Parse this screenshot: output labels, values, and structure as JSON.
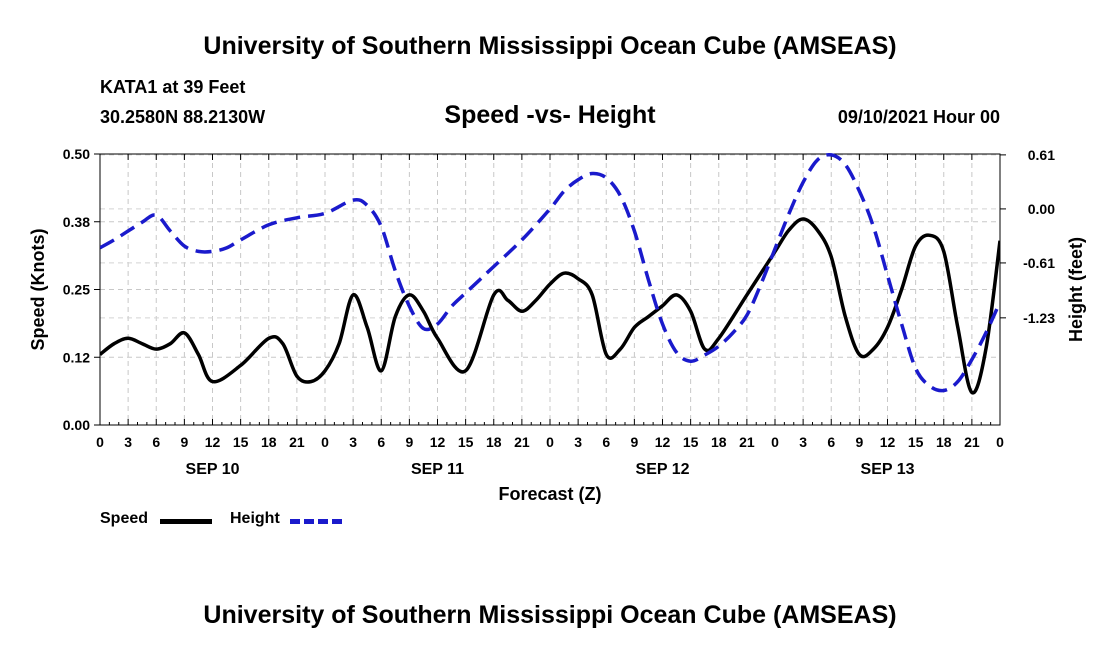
{
  "header": {
    "title": "University of Southern Mississippi Ocean Cube (AMSEAS)",
    "station": "KATA1 at 39 Feet",
    "coordinates": "30.2580N  88.2130W",
    "chart_title": "Speed -vs- Height",
    "datetime": "09/10/2021 Hour 00"
  },
  "footer": {
    "title": "University of Southern Mississippi Ocean Cube (AMSEAS)"
  },
  "legend": {
    "items": [
      {
        "label": "Speed",
        "color": "#000000",
        "style": "solid"
      },
      {
        "label": "Height",
        "color": "#1a1acc",
        "style": "dashed"
      }
    ]
  },
  "chart_data": {
    "type": "line",
    "title": "Speed -vs- Height",
    "xlabel": "Forecast (Z)",
    "ylabel_left": "Speed (Knots)",
    "ylabel_right": "Height (feet)",
    "x_range_hours": [
      0,
      96
    ],
    "x_tick_labels": [
      "0",
      "3",
      "6",
      "9",
      "12",
      "15",
      "18",
      "21",
      "0",
      "3",
      "6",
      "9",
      "12",
      "15",
      "18",
      "21",
      "0",
      "3",
      "6",
      "9",
      "12",
      "15",
      "18",
      "21",
      "0",
      "3",
      "6",
      "9",
      "12",
      "15",
      "18",
      "21",
      "0"
    ],
    "day_labels": [
      {
        "label": "SEP 10",
        "hour": 12
      },
      {
        "label": "SEP 11",
        "hour": 36
      },
      {
        "label": "SEP 12",
        "hour": 60
      },
      {
        "label": "SEP 13",
        "hour": 84
      }
    ],
    "left_axis": {
      "ylim": [
        0,
        0.5
      ],
      "ticks": [
        "0.00",
        "0.12",
        "0.25",
        "0.38",
        "0.50"
      ],
      "tick_values": [
        0,
        0.125,
        0.25,
        0.375,
        0.5
      ]
    },
    "right_axis": {
      "ylim": [
        -2.44,
        0.62
      ],
      "ticks": [
        "0.61",
        "0.00",
        "-0.61",
        "-1.23"
      ],
      "tick_values": [
        0.61,
        0,
        -0.61,
        -1.23
      ]
    },
    "grid": true,
    "series": [
      {
        "name": "Speed",
        "axis": "left",
        "color": "#000000",
        "x": [
          0,
          1.5,
          3,
          4.5,
          6,
          7.5,
          9,
          10.5,
          12,
          15,
          18,
          19.5,
          21,
          22.5,
          24,
          25.5,
          27,
          28.5,
          30,
          31.5,
          33,
          34.5,
          36,
          39,
          42,
          43.5,
          45,
          46.5,
          48,
          49.5,
          51,
          52.5,
          54,
          55.5,
          57,
          58.5,
          60,
          61.5,
          63,
          64.5,
          66,
          69,
          72,
          73.5,
          75,
          76.5,
          78,
          79.5,
          81,
          82.5,
          84,
          85.5,
          87,
          88.5,
          90,
          91.5,
          93,
          94.5,
          96
        ],
        "values": [
          0.13,
          0.15,
          0.16,
          0.15,
          0.14,
          0.15,
          0.17,
          0.13,
          0.08,
          0.11,
          0.16,
          0.15,
          0.09,
          0.08,
          0.1,
          0.15,
          0.24,
          0.18,
          0.1,
          0.2,
          0.24,
          0.21,
          0.16,
          0.1,
          0.24,
          0.23,
          0.21,
          0.23,
          0.26,
          0.28,
          0.27,
          0.24,
          0.13,
          0.14,
          0.18,
          0.2,
          0.22,
          0.24,
          0.21,
          0.14,
          0.16,
          0.24,
          0.32,
          0.36,
          0.38,
          0.36,
          0.31,
          0.2,
          0.13,
          0.14,
          0.18,
          0.25,
          0.33,
          0.35,
          0.32,
          0.18,
          0.06,
          0.14,
          0.34
        ]
      },
      {
        "name": "Height",
        "axis": "right",
        "color": "#1a1acc",
        "x": [
          0,
          1.5,
          3,
          4.5,
          6,
          7.5,
          9,
          10.5,
          12,
          13.5,
          15,
          18,
          21,
          24,
          27,
          28.5,
          30,
          31.5,
          33,
          34.5,
          36,
          37.5,
          39,
          40.5,
          42,
          45,
          48,
          49.5,
          51,
          52.5,
          54,
          55.5,
          57,
          58.5,
          60,
          61.5,
          63,
          64.5,
          66,
          67.5,
          69,
          70.5,
          72,
          73.5,
          75,
          76.5,
          78,
          79.5,
          81,
          82.5,
          84,
          85.5,
          87,
          88.5,
          90,
          91.5,
          93,
          94.5,
          96
        ],
        "values": [
          -0.44,
          -0.35,
          -0.25,
          -0.15,
          -0.07,
          -0.25,
          -0.42,
          -0.48,
          -0.48,
          -0.44,
          -0.35,
          -0.18,
          -0.1,
          -0.05,
          0.1,
          0.04,
          -0.2,
          -0.7,
          -1.1,
          -1.35,
          -1.3,
          -1.1,
          -0.95,
          -0.8,
          -0.65,
          -0.35,
          0.0,
          0.2,
          0.33,
          0.4,
          0.35,
          0.15,
          -0.25,
          -0.8,
          -1.3,
          -1.62,
          -1.72,
          -1.65,
          -1.55,
          -1.4,
          -1.2,
          -0.85,
          -0.45,
          -0.05,
          0.3,
          0.55,
          0.61,
          0.5,
          0.2,
          -0.2,
          -0.75,
          -1.3,
          -1.8,
          -2.0,
          -2.05,
          -1.95,
          -1.7,
          -1.4,
          -1.05
        ]
      }
    ]
  }
}
